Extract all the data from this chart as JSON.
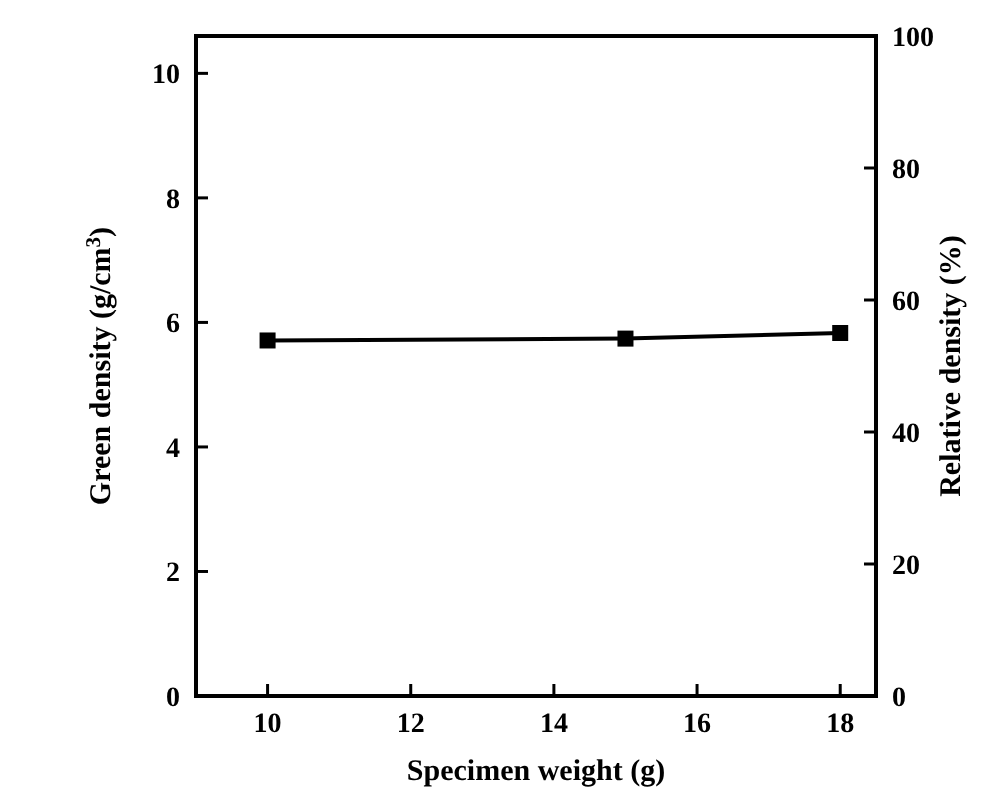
{
  "chart_data": {
    "type": "line",
    "xlabel": "Specimen weight (g)",
    "ylabel": "Green density (g/cm$^{3}$)",
    "y2label": "Relative density (%)",
    "x": [
      10,
      15,
      18
    ],
    "series": [
      {
        "color": "#000000",
        "values": [
          5.71,
          5.74,
          5.83
        ]
      }
    ],
    "xlim": [
      9,
      18.5
    ],
    "xticks": [
      10,
      12,
      14,
      16,
      18
    ],
    "ylim": [
      0,
      10.6
    ],
    "yticks": [
      0,
      2,
      4,
      6,
      8,
      10
    ],
    "y2lim": [
      0,
      100
    ],
    "y2ticks": [
      0,
      20,
      40,
      60,
      80,
      100
    ],
    "marker": "square",
    "line_style": "solid",
    "grid": false
  }
}
